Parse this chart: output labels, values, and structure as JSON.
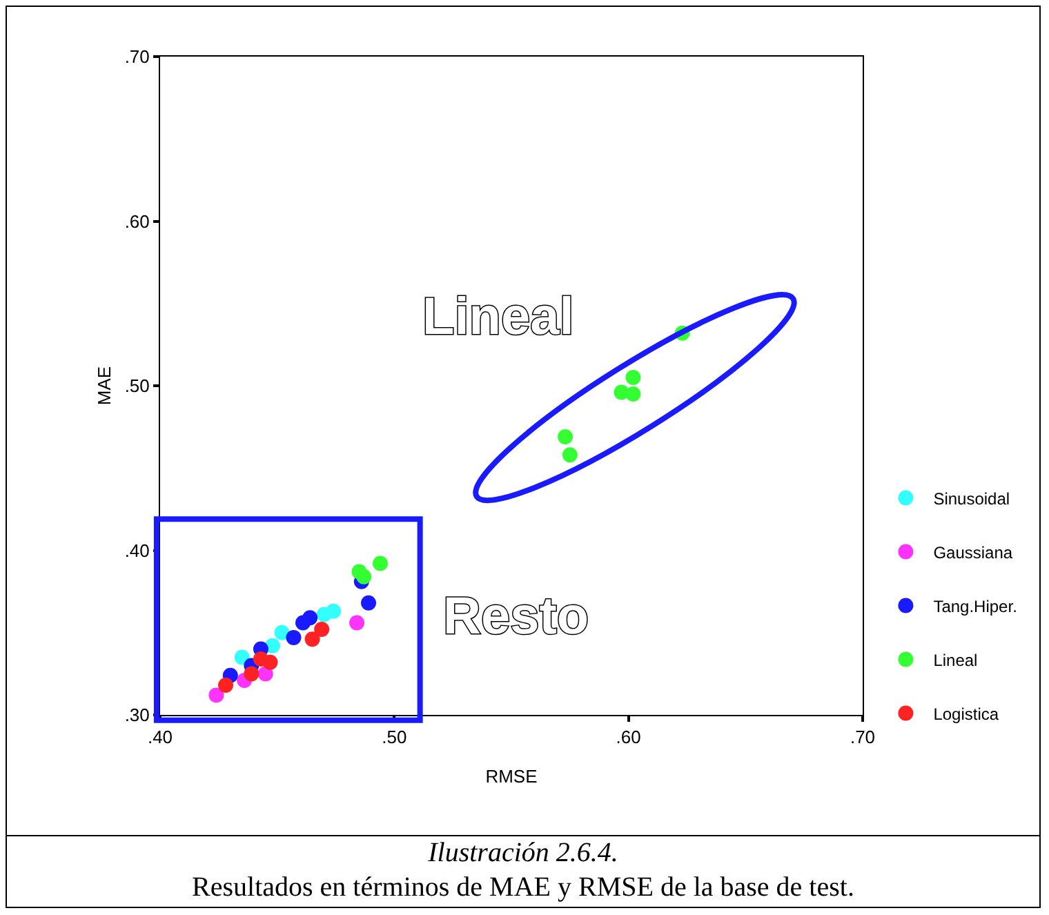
{
  "chart_data": {
    "type": "scatter",
    "xlabel": "RMSE",
    "ylabel": "MAE",
    "xlim": [
      0.4,
      0.7
    ],
    "ylim": [
      0.3,
      0.7
    ],
    "xticks": [
      {
        "value": 0.4,
        "label": ".40"
      },
      {
        "value": 0.5,
        "label": ".50"
      },
      {
        "value": 0.6,
        "label": ".60"
      },
      {
        "value": 0.7,
        "label": ".70"
      }
    ],
    "yticks": [
      {
        "value": 0.3,
        "label": ".30"
      },
      {
        "value": 0.4,
        "label": ".40"
      },
      {
        "value": 0.5,
        "label": ".50"
      },
      {
        "value": 0.6,
        "label": ".60"
      },
      {
        "value": 0.7,
        "label": ".70"
      }
    ],
    "grid": false,
    "legend": "right",
    "marker": "circle",
    "series": [
      {
        "name": "Sinusoidal",
        "color": "#33ffff",
        "x": [
          0.474,
          0.47,
          0.452,
          0.448,
          0.435
        ],
        "values": [
          0.363,
          0.361,
          0.35,
          0.342,
          0.335
        ]
      },
      {
        "name": "Gaussiana",
        "color": "#ff33ff",
        "x": [
          0.424,
          0.436,
          0.445,
          0.484
        ],
        "values": [
          0.312,
          0.321,
          0.325,
          0.356
        ]
      },
      {
        "name": "Tang.Hiper.",
        "color": "#1a1aff",
        "x": [
          0.464,
          0.461,
          0.457,
          0.443,
          0.43,
          0.486,
          0.489,
          0.439
        ],
        "values": [
          0.359,
          0.356,
          0.347,
          0.34,
          0.324,
          0.381,
          0.368,
          0.33
        ]
      },
      {
        "name": "Lineal",
        "color": "#33ff33",
        "x": [
          0.623,
          0.602,
          0.597,
          0.602,
          0.573,
          0.575,
          0.494,
          0.485,
          0.487
        ],
        "values": [
          0.532,
          0.505,
          0.496,
          0.495,
          0.469,
          0.458,
          0.392,
          0.387,
          0.384
        ]
      },
      {
        "name": "Logistica",
        "color": "#ff2222",
        "x": [
          0.428,
          0.439,
          0.443,
          0.447,
          0.465,
          0.469
        ],
        "values": [
          0.318,
          0.325,
          0.334,
          0.332,
          0.346,
          0.352
        ]
      }
    ],
    "annotations": [
      "Lineal",
      "Resto",
      "Ilustración 2.6.4.",
      "Resultados en términos de MAE y RMSE de la base de test."
    ]
  }
}
